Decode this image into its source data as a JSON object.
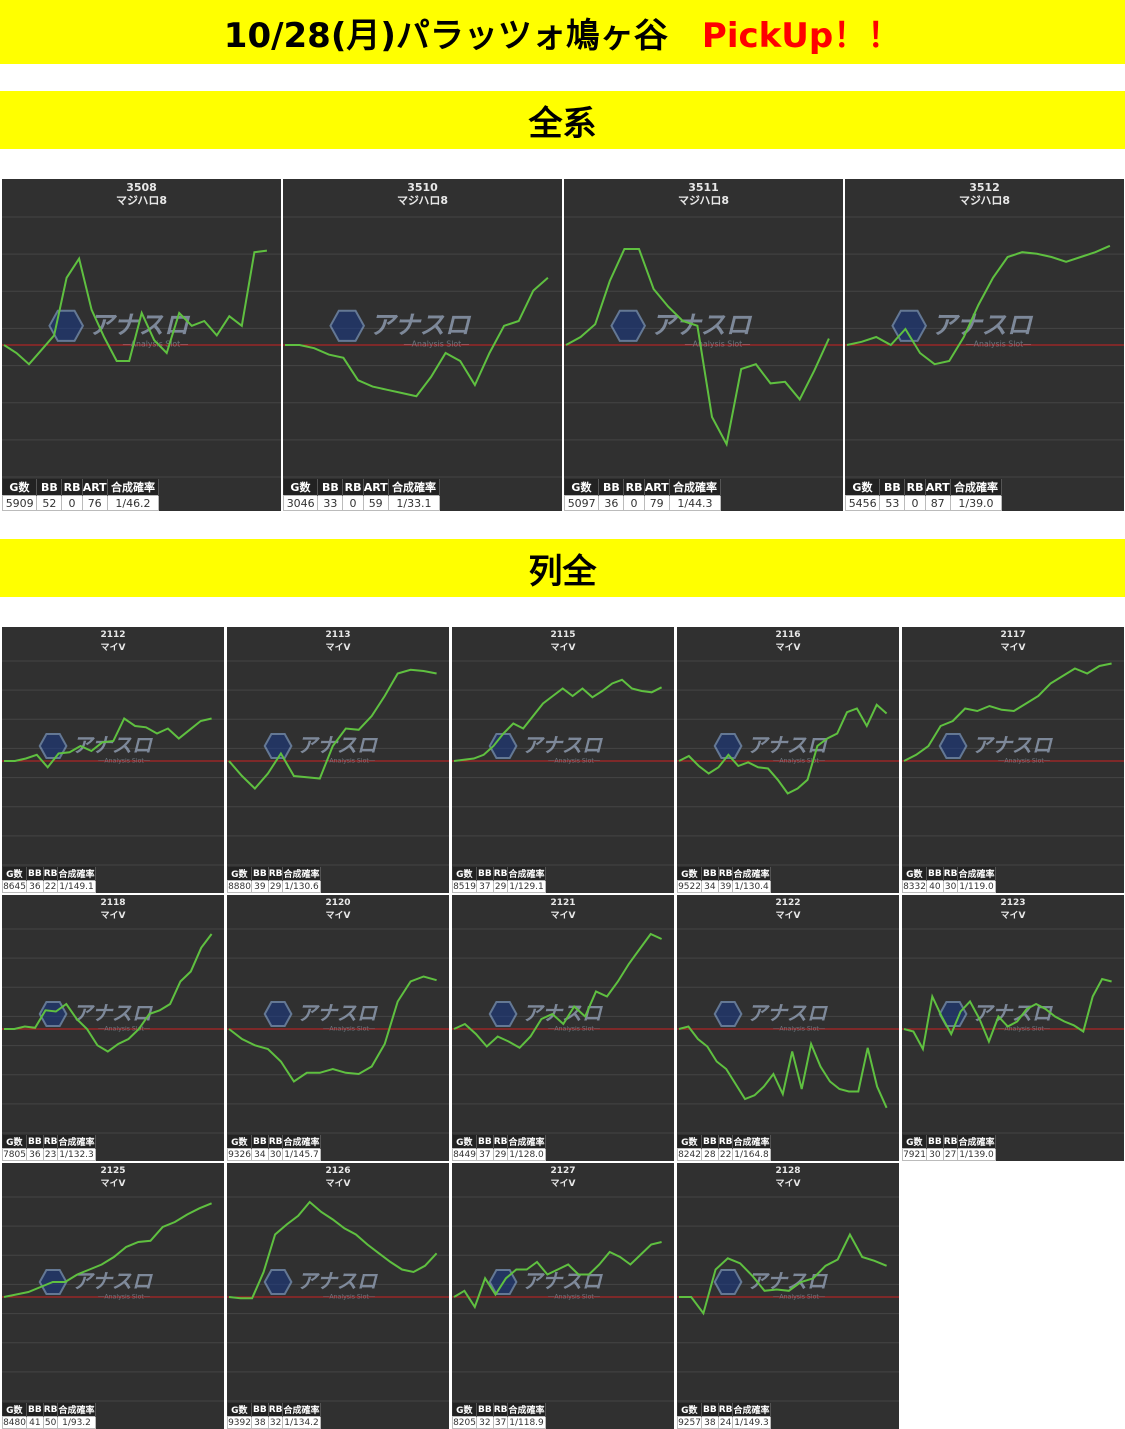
{
  "header": {
    "title": "10/28(月)パラッツォ鳩ヶ谷",
    "pickup": "PickUp！！"
  },
  "colors": {
    "banner": "#ffff00",
    "line": "#5fc040",
    "zero_line": "#cc2222",
    "panel_bg": "#303030"
  },
  "watermark": {
    "logo_name": "アナスロ",
    "sub": "―Analysis Slot―"
  },
  "sections": [
    {
      "title": "全系",
      "columns": [
        "G数",
        "BB",
        "RB",
        "ART",
        "合成確率"
      ],
      "machines": [
        {
          "number": "3508",
          "model": "マジハロ8",
          "stats": [
            "5909",
            "52",
            "0",
            "76",
            "1/46.2"
          ]
        },
        {
          "number": "3510",
          "model": "マジハロ8",
          "stats": [
            "3046",
            "33",
            "0",
            "59",
            "1/33.1"
          ]
        },
        {
          "number": "3511",
          "model": "マジハロ8",
          "stats": [
            "5097",
            "36",
            "0",
            "79",
            "1/44.3"
          ]
        },
        {
          "number": "3512",
          "model": "マジハロ8",
          "stats": [
            "5456",
            "53",
            "0",
            "87",
            "1/39.0"
          ]
        }
      ]
    },
    {
      "title": "列全",
      "columns": [
        "G数",
        "BB",
        "RB",
        "合成確率"
      ],
      "machines": [
        {
          "number": "2112",
          "model": "マイV",
          "stats": [
            "8645",
            "36",
            "22",
            "1/149.1"
          ]
        },
        {
          "number": "2113",
          "model": "マイV",
          "stats": [
            "8880",
            "39",
            "29",
            "1/130.6"
          ]
        },
        {
          "number": "2115",
          "model": "マイV",
          "stats": [
            "8519",
            "37",
            "29",
            "1/129.1"
          ]
        },
        {
          "number": "2116",
          "model": "マイV",
          "stats": [
            "9522",
            "34",
            "39",
            "1/130.4"
          ]
        },
        {
          "number": "2117",
          "model": "マイV",
          "stats": [
            "8332",
            "40",
            "30",
            "1/119.0"
          ]
        },
        {
          "number": "2118",
          "model": "マイV",
          "stats": [
            "7805",
            "36",
            "23",
            "1/132.3"
          ]
        },
        {
          "number": "2120",
          "model": "マイV",
          "stats": [
            "9326",
            "34",
            "30",
            "1/145.7"
          ]
        },
        {
          "number": "2121",
          "model": "マイV",
          "stats": [
            "8449",
            "37",
            "29",
            "1/128.0"
          ]
        },
        {
          "number": "2122",
          "model": "マイV",
          "stats": [
            "8242",
            "28",
            "22",
            "1/164.8"
          ]
        },
        {
          "number": "2123",
          "model": "マイV",
          "stats": [
            "7921",
            "30",
            "27",
            "1/139.0"
          ]
        },
        {
          "number": "2125",
          "model": "マイV",
          "stats": [
            "8480",
            "41",
            "50",
            "1/93.2"
          ]
        },
        {
          "number": "2126",
          "model": "マイV",
          "stats": [
            "9392",
            "38",
            "32",
            "1/134.2"
          ]
        },
        {
          "number": "2127",
          "model": "マイV",
          "stats": [
            "8205",
            "32",
            "37",
            "1/118.9"
          ]
        },
        {
          "number": "2128",
          "model": "マイV",
          "stats": [
            "9257",
            "38",
            "24",
            "1/149.3"
          ]
        }
      ]
    }
  ],
  "chart_data": [
    {
      "type": "line",
      "machine": "3508",
      "y": [
        0,
        -0.5,
        -1.2,
        -0.3,
        0.6,
        4.2,
        5.4,
        2.2,
        0.5,
        -1,
        -1,
        2,
        0.3,
        -0.5,
        2,
        1.2,
        1.5,
        0.6,
        1.8,
        1.2,
        5.8,
        5.9
      ]
    },
    {
      "type": "line",
      "machine": "3510",
      "y": [
        0,
        0,
        -0.2,
        -0.6,
        -0.8,
        -2.2,
        -2.6,
        -2.8,
        -3,
        -3.2,
        -2,
        -0.5,
        -1,
        -2.5,
        -0.5,
        1.2,
        1.5,
        3.4,
        4.2
      ]
    },
    {
      "type": "line",
      "machine": "3511",
      "y": [
        0,
        0.5,
        1.3,
        4,
        6,
        6,
        3.5,
        2.4,
        1.5,
        1.2,
        -4.5,
        -6.2,
        -1.5,
        -1.2,
        -2.4,
        -2.3,
        -3.4,
        -1.6,
        0.4
      ]
    },
    {
      "type": "line",
      "machine": "3512",
      "y": [
        0,
        0.2,
        0.5,
        0,
        1,
        -0.5,
        -1.2,
        -1,
        0.5,
        2.5,
        4.2,
        5.5,
        5.8,
        5.7,
        5.5,
        5.2,
        5.5,
        5.8,
        6.2
      ]
    },
    {
      "type": "line",
      "machine": "2112",
      "y": [
        0,
        0,
        0.2,
        0.5,
        -0.5,
        0.6,
        0.7,
        1.2,
        0.8,
        1.5,
        1.6,
        3.4,
        2.8,
        2.7,
        2.2,
        2.6,
        1.8,
        2.5,
        3.2,
        3.4
      ]
    },
    {
      "type": "line",
      "machine": "2113",
      "y": [
        0,
        -1.2,
        -2.2,
        -1,
        0.6,
        -1.2,
        -1.3,
        -1.4,
        1.2,
        2.6,
        2.5,
        3.6,
        5.2,
        7,
        7.3,
        7.2,
        7
      ]
    },
    {
      "type": "line",
      "machine": "2115",
      "y": [
        0,
        0.1,
        0.2,
        0.5,
        1.2,
        2.2,
        3,
        2.6,
        3.6,
        4.6,
        5.2,
        5.8,
        5.2,
        5.8,
        5.1,
        5.6,
        6.2,
        6.5,
        5.8,
        5.6,
        5.5,
        5.9
      ]
    },
    {
      "type": "line",
      "machine": "2116",
      "y": [
        0,
        0.4,
        -0.4,
        -1,
        -0.5,
        0.5,
        -0.4,
        -0.1,
        -0.5,
        -0.6,
        -1.5,
        -2.6,
        -2.2,
        -1.5,
        1.2,
        1.8,
        2.2,
        3.9,
        4.2,
        2.8,
        4.5,
        3.8
      ]
    },
    {
      "type": "line",
      "machine": "2117",
      "y": [
        0,
        0.5,
        1.2,
        2.8,
        3.2,
        4.2,
        4,
        4.4,
        4.1,
        4,
        4.6,
        5.2,
        6.2,
        6.8,
        7.4,
        7,
        7.6,
        7.8
      ]
    },
    {
      "type": "line",
      "machine": "2118",
      "y": [
        0,
        0,
        0.2,
        0.1,
        1.5,
        1.4,
        2,
        0.8,
        0,
        -1.3,
        -1.8,
        -1.2,
        -0.8,
        0,
        1.2,
        1.5,
        2,
        3.8,
        4.6,
        6.5,
        7.6
      ]
    },
    {
      "type": "line",
      "machine": "2120",
      "y": [
        0,
        -0.8,
        -1.3,
        -1.6,
        -2.6,
        -4.2,
        -3.5,
        -3.5,
        -3.2,
        -3.5,
        -3.6,
        -3,
        -1.2,
        2.2,
        3.8,
        4.2,
        3.9
      ]
    },
    {
      "type": "line",
      "machine": "2121",
      "y": [
        0,
        0.4,
        -0.4,
        -1.4,
        -0.6,
        -1,
        -1.5,
        -0.6,
        0.8,
        1.2,
        0.4,
        1.8,
        1,
        3,
        2.6,
        3.8,
        5.2,
        6.4,
        7.6,
        7.2
      ]
    },
    {
      "type": "line",
      "machine": "2122",
      "y": [
        0,
        0.2,
        -0.8,
        -1.4,
        -2.6,
        -3.2,
        -4.4,
        -5.6,
        -5.3,
        -4.6,
        -3.6,
        -5.2,
        -1.8,
        -4.8,
        -1.2,
        -3,
        -4.2,
        -4.8,
        -5,
        -5,
        -1.5,
        -4.6,
        -6.3
      ]
    },
    {
      "type": "line",
      "machine": "2123",
      "y": [
        0,
        -0.2,
        -1.6,
        2.6,
        1,
        -0.4,
        1.4,
        2.2,
        0.8,
        -1,
        1,
        0.2,
        0.6,
        1.6,
        2,
        1.6,
        1,
        0.6,
        0.3,
        -0.2,
        2.6,
        4,
        3.8
      ]
    },
    {
      "type": "line",
      "machine": "2125",
      "y": [
        0,
        0.2,
        0.4,
        0.8,
        1.2,
        1.2,
        1.8,
        2.2,
        2.6,
        3.2,
        4,
        4.4,
        4.5,
        5.6,
        6,
        6.6,
        7.1,
        7.5
      ]
    },
    {
      "type": "line",
      "machine": "2126",
      "y": [
        0,
        -0.1,
        -0.1,
        2,
        5,
        5.8,
        6.5,
        7.6,
        6.8,
        6.2,
        5.5,
        5,
        4.2,
        3.5,
        2.8,
        2.2,
        2,
        2.5,
        3.5
      ]
    },
    {
      "type": "line",
      "machine": "2127",
      "y": [
        0,
        0.5,
        -0.8,
        1.5,
        0.2,
        1.5,
        2.2,
        2.2,
        2.8,
        1.8,
        2.2,
        2.6,
        1.8,
        1.8,
        2.6,
        3.6,
        3.2,
        2.6,
        3.4,
        4.2,
        4.4
      ]
    },
    {
      "type": "line",
      "machine": "2128",
      "y": [
        0,
        0,
        -1.3,
        2.2,
        3.1,
        2.7,
        1.7,
        0.5,
        0.6,
        0.5,
        1.2,
        1.5,
        2.5,
        3,
        5,
        3.2,
        2.9,
        2.5
      ]
    }
  ]
}
